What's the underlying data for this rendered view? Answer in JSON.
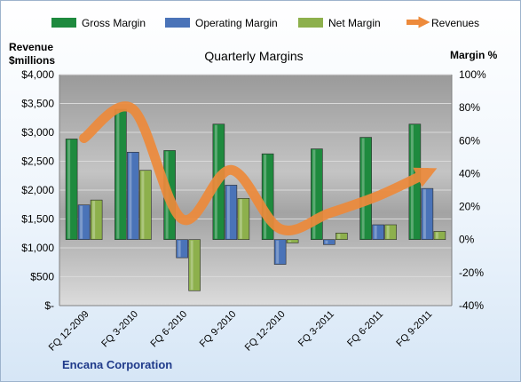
{
  "chart_data": {
    "type": "bar",
    "title": "Quarterly Margins",
    "company": "Encana Corporation",
    "y_left_label": [
      "Revenue",
      "$millions"
    ],
    "y_right_label": "Margin %",
    "y_left_ticks": [
      "$-",
      "$500",
      "$1,000",
      "$1,500",
      "$2,000",
      "$2,500",
      "$3,000",
      "$3,500",
      "$4,000"
    ],
    "y_right_ticks": [
      "-40%",
      "-20%",
      "0%",
      "20%",
      "40%",
      "60%",
      "80%",
      "100%"
    ],
    "y_left_range": [
      0,
      4000
    ],
    "y_right_range": [
      -40,
      100
    ],
    "grid": true,
    "legend_position": "top",
    "categories": [
      "FQ 12-2009",
      "FQ 3-2010",
      "FQ 6-2010",
      "FQ 9-2010",
      "FQ 12-2010",
      "FQ 3-2011",
      "FQ 6-2011",
      "FQ 9-2011"
    ],
    "series": [
      {
        "name": "Gross Margin",
        "type": "bar",
        "axis": "right",
        "color": "#1e8a3e",
        "values": [
          61,
          79,
          54,
          70,
          52,
          55,
          62,
          70
        ]
      },
      {
        "name": "Operating Margin",
        "type": "bar",
        "axis": "right",
        "color": "#4a73b8",
        "values": [
          21,
          53,
          -11,
          33,
          -15,
          -3,
          9,
          31
        ]
      },
      {
        "name": "Net Margin",
        "type": "bar",
        "axis": "right",
        "color": "#8db04c",
        "values": [
          24,
          42,
          -31,
          25,
          -2,
          4,
          9,
          5
        ]
      },
      {
        "name": "Revenues",
        "type": "line",
        "axis": "left",
        "color": "#ed8a3b",
        "values": [
          2900,
          3400,
          1500,
          2350,
          1330,
          1600,
          1900,
          2300
        ]
      }
    ]
  }
}
